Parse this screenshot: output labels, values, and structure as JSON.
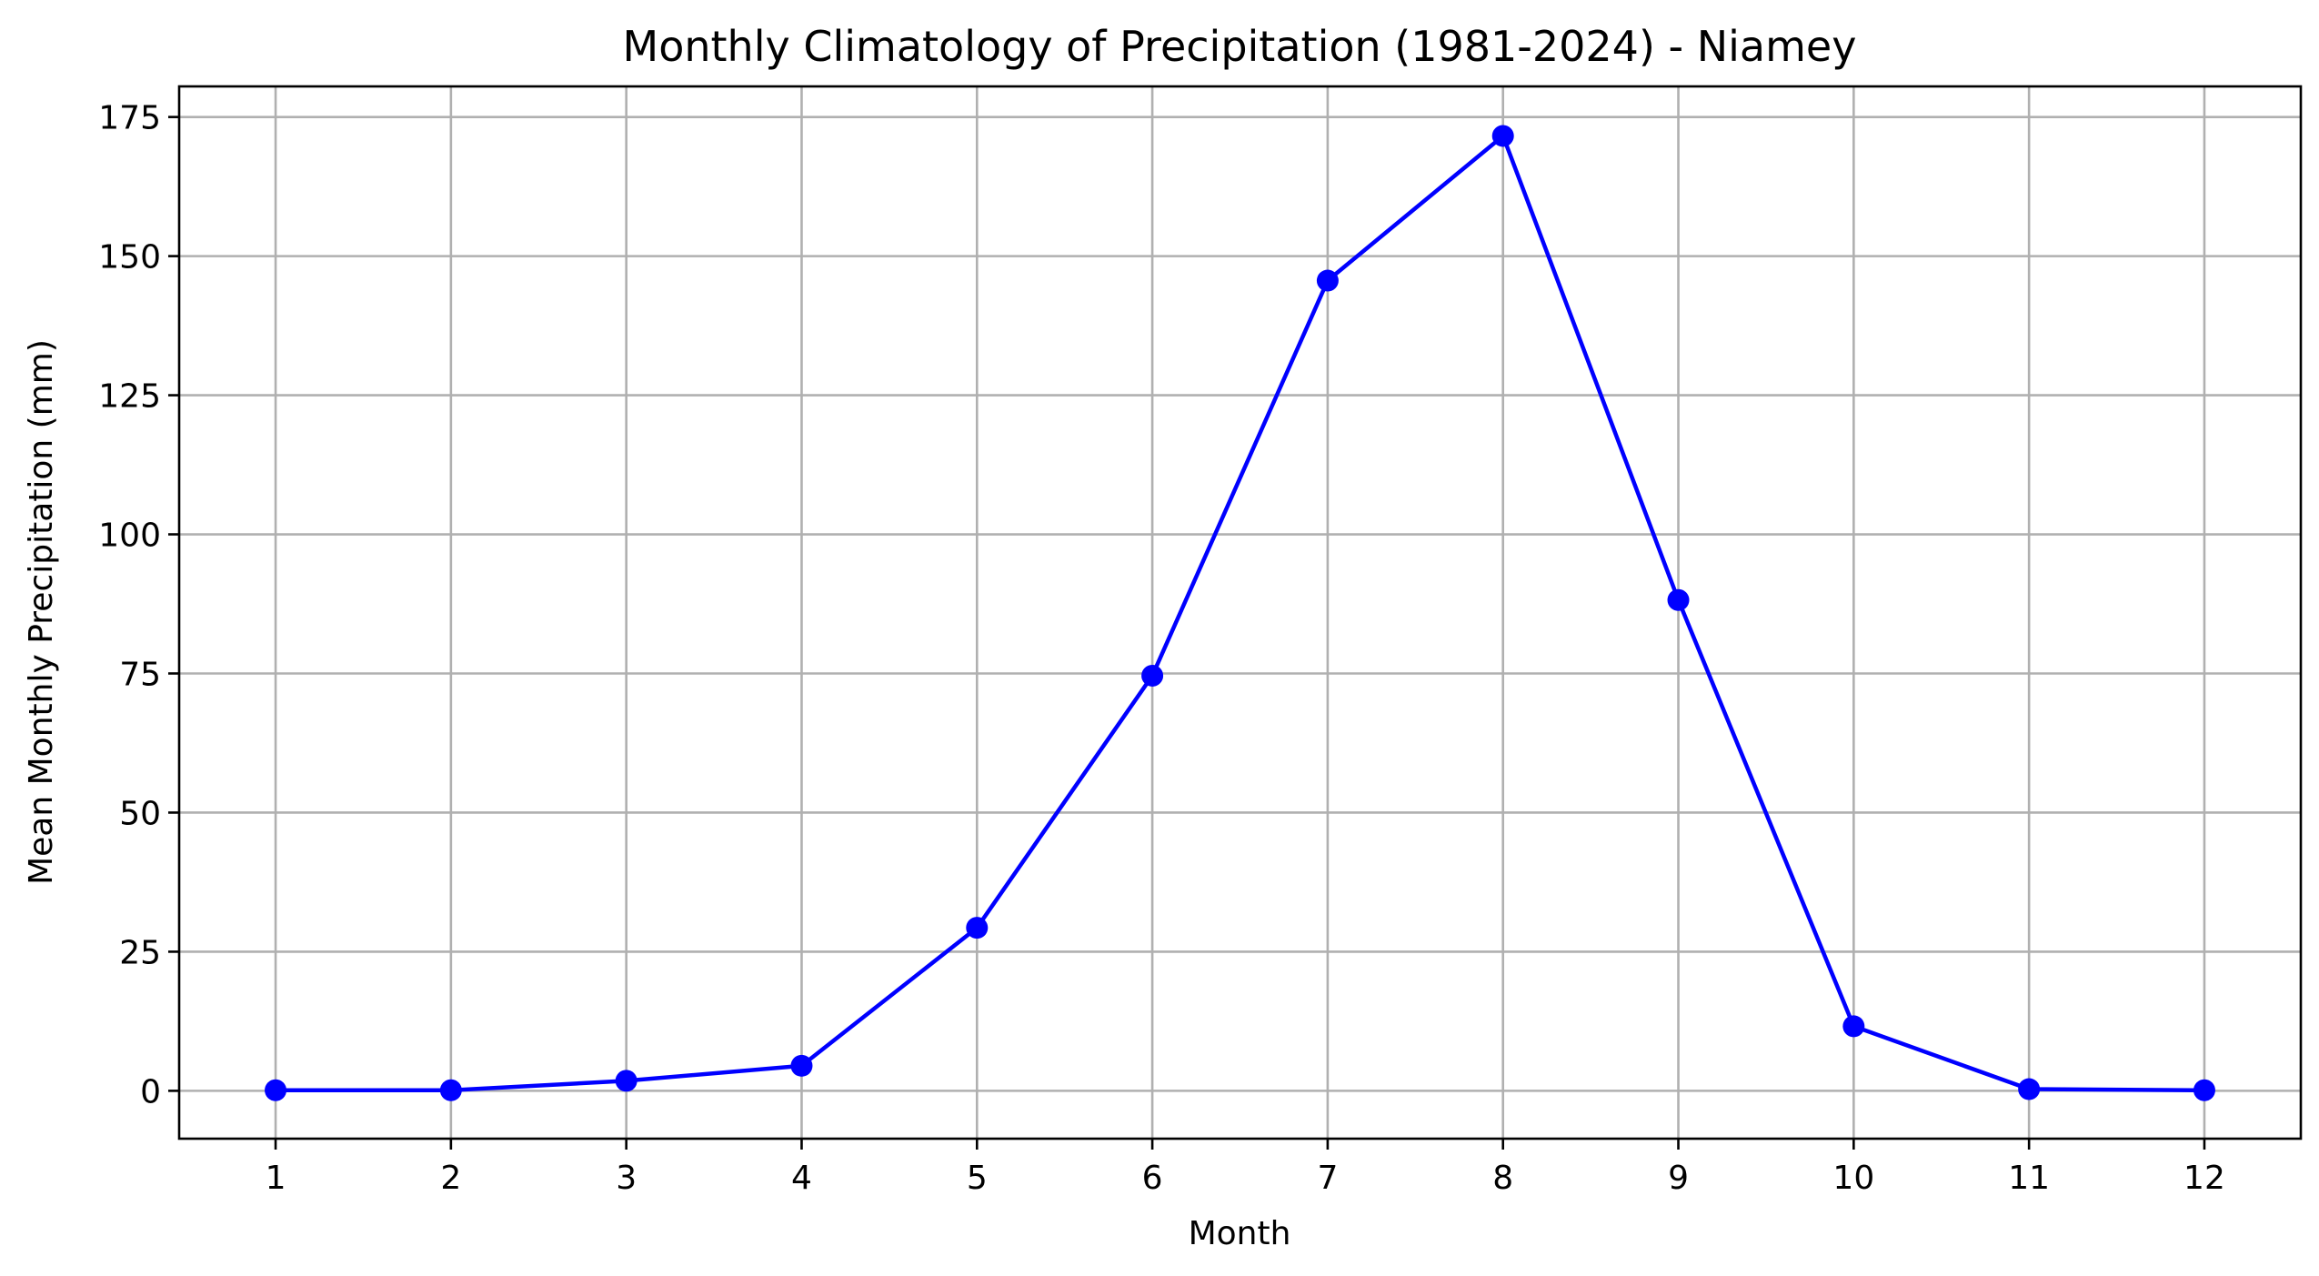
{
  "chart_data": {
    "type": "line",
    "title": "Monthly Climatology of Precipitation (1981-2024) - Niamey",
    "xlabel": "Month",
    "ylabel": "Mean Monthly Precipitation (mm)",
    "x": [
      1,
      2,
      3,
      4,
      5,
      6,
      7,
      8,
      9,
      10,
      11,
      12
    ],
    "x_tick_labels": [
      "1",
      "2",
      "3",
      "4",
      "5",
      "6",
      "7",
      "8",
      "9",
      "10",
      "11",
      "12"
    ],
    "y_ticks": [
      0,
      25,
      50,
      75,
      100,
      125,
      150,
      175
    ],
    "y_tick_labels": [
      "0",
      "25",
      "50",
      "75",
      "100",
      "125",
      "150",
      "175"
    ],
    "xlim": [
      0.45,
      12.55
    ],
    "ylim": [
      -8.6,
      180.5
    ],
    "grid": true,
    "series": [
      {
        "color": "#0000ff",
        "marker": "circle",
        "values": [
          0.1,
          0.1,
          1.8,
          4.5,
          29.3,
          74.6,
          145.6,
          171.6,
          88.2,
          11.6,
          0.3,
          0.1
        ]
      }
    ]
  }
}
